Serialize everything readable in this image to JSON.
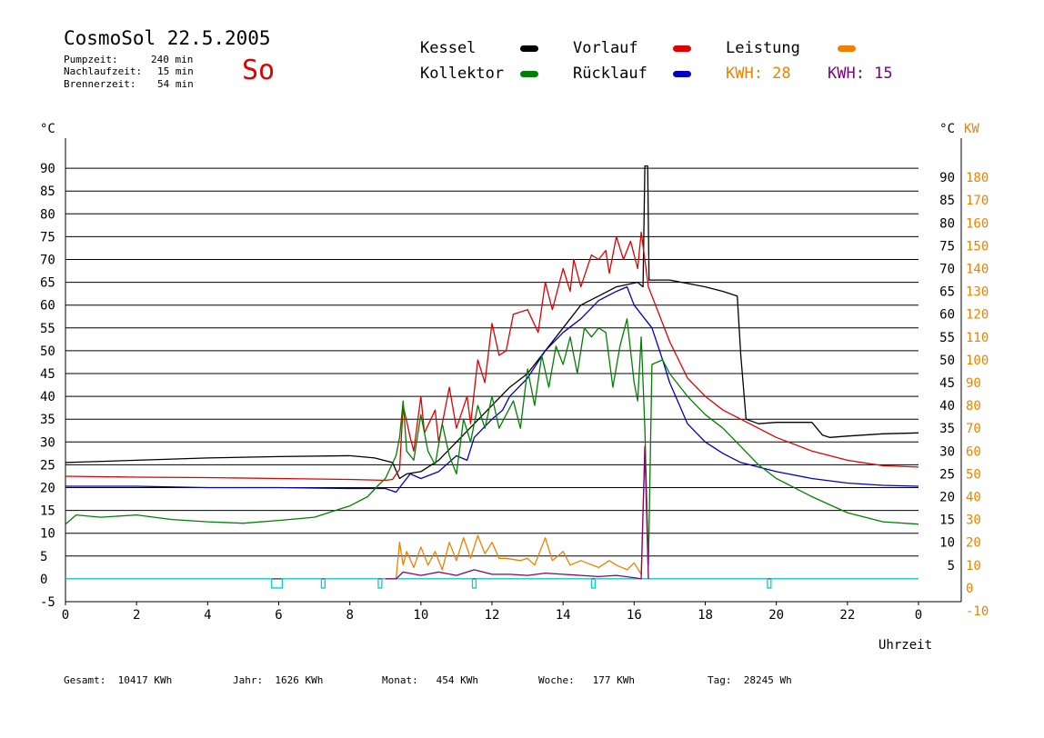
{
  "header": {
    "title": "CosmoSol 22.5.2005",
    "day": "So",
    "pumpzeit_label": "Pumpzeit:",
    "pumpzeit_value": "240 min",
    "nachlaufzeit_label": "Nachlaufzeit:",
    "nachlaufzeit_value": "15 min",
    "brennerzeit_label": "Brennerzeit:",
    "brennerzeit_value": "54 min"
  },
  "legend": {
    "kessel": "Kessel",
    "kollektor": "Kollektor",
    "vorlauf": "Vorlauf",
    "ruecklauf": "Rücklauf",
    "leistung": "Leistung",
    "kwh1": "KWH: 28",
    "kwh2": "KWH: 15"
  },
  "footer": {
    "gesamt": "Gesamt:  10417 KWh",
    "jahr": "Jahr:  1626 KWh",
    "monat": "Monat:   454 KWh",
    "woche": "Woche:   177 KWh",
    "tag": "Tag:  28245 Wh"
  },
  "colors": {
    "kessel": "#000000",
    "kollektor": "#008000",
    "vorlauf": "#e00000",
    "ruecklauf": "#0000c0",
    "leistung": "#f08000",
    "kwh2": "#800080",
    "pump": "#00d0d0",
    "grid": "#000000"
  },
  "chart_data": {
    "type": "line",
    "xlabel": "Uhrzeit",
    "ylabel_left": "°C",
    "ylabel_right": "KW",
    "xlim": [
      0,
      24
    ],
    "ylim_left": [
      -5,
      95
    ],
    "ylim_right": [
      -10,
      190
    ],
    "x_ticks": [
      "0",
      "2",
      "4",
      "6",
      "8",
      "10",
      "12",
      "14",
      "16",
      "18",
      "20",
      "22",
      "0"
    ],
    "y_ticks_left": [
      "-5",
      "0",
      "5",
      "10",
      "15",
      "20",
      "25",
      "30",
      "35",
      "40",
      "45",
      "50",
      "55",
      "60",
      "65",
      "70",
      "75",
      "80",
      "85",
      "90"
    ],
    "y_ticks_right_temp": [
      "5",
      "10",
      "15",
      "20",
      "25",
      "30",
      "35",
      "40",
      "45",
      "50",
      "55",
      "60",
      "65",
      "70",
      "75",
      "80",
      "85",
      "90"
    ],
    "y_ticks_right_kw": [
      "-10",
      "0",
      "10",
      "20",
      "30",
      "40",
      "50",
      "60",
      "70",
      "80",
      "90",
      "100",
      "110",
      "120",
      "130",
      "140",
      "150",
      "160",
      "170",
      "180"
    ],
    "grid": true,
    "series": [
      {
        "name": "Kessel",
        "color": "#000000",
        "points": [
          [
            0,
            25.5
          ],
          [
            2,
            26
          ],
          [
            4,
            26.5
          ],
          [
            6,
            26.8
          ],
          [
            8,
            27
          ],
          [
            8.7,
            26.5
          ],
          [
            9.2,
            25.5
          ],
          [
            9.4,
            22
          ],
          [
            9.6,
            23
          ],
          [
            10,
            23.5
          ],
          [
            10.5,
            26
          ],
          [
            11,
            30
          ],
          [
            11.5,
            34
          ],
          [
            12,
            38
          ],
          [
            12.5,
            42
          ],
          [
            13,
            45
          ],
          [
            13.5,
            50
          ],
          [
            14,
            55
          ],
          [
            14.5,
            60
          ],
          [
            15,
            62
          ],
          [
            15.5,
            64
          ],
          [
            16.1,
            65
          ],
          [
            16.25,
            64
          ],
          [
            16.3,
            90.5
          ],
          [
            16.38,
            90.5
          ],
          [
            16.42,
            65.5
          ],
          [
            17,
            65.5
          ],
          [
            18,
            64
          ],
          [
            18.5,
            63
          ],
          [
            18.9,
            62
          ],
          [
            19,
            49
          ],
          [
            19.15,
            35
          ],
          [
            19.5,
            34
          ],
          [
            20,
            34.3
          ],
          [
            21,
            34.3
          ],
          [
            21.3,
            31.5
          ],
          [
            21.5,
            31
          ],
          [
            22,
            31.3
          ],
          [
            23,
            31.8
          ],
          [
            24,
            32
          ]
        ]
      },
      {
        "name": "Vorlauf",
        "color": "#e00000",
        "points": [
          [
            0,
            22.5
          ],
          [
            2,
            22.3
          ],
          [
            4,
            22.2
          ],
          [
            6,
            22
          ],
          [
            8,
            21.8
          ],
          [
            9,
            21.6
          ],
          [
            9.2,
            21.8
          ],
          [
            9.4,
            24
          ],
          [
            9.5,
            38
          ],
          [
            9.7,
            31
          ],
          [
            9.8,
            28
          ],
          [
            10,
            40
          ],
          [
            10.1,
            32
          ],
          [
            10.4,
            37
          ],
          [
            10.5,
            30
          ],
          [
            10.8,
            42
          ],
          [
            11,
            33
          ],
          [
            11.3,
            40
          ],
          [
            11.4,
            34
          ],
          [
            11.6,
            48
          ],
          [
            11.8,
            43
          ],
          [
            12,
            56
          ],
          [
            12.2,
            49
          ],
          [
            12.4,
            50
          ],
          [
            12.6,
            58
          ],
          [
            13,
            59
          ],
          [
            13.3,
            54
          ],
          [
            13.5,
            65
          ],
          [
            13.7,
            59
          ],
          [
            14,
            68
          ],
          [
            14.2,
            63
          ],
          [
            14.3,
            70
          ],
          [
            14.5,
            64
          ],
          [
            14.8,
            71
          ],
          [
            15,
            70
          ],
          [
            15.2,
            72
          ],
          [
            15.3,
            67
          ],
          [
            15.5,
            75
          ],
          [
            15.7,
            70
          ],
          [
            15.9,
            74
          ],
          [
            16.1,
            68
          ],
          [
            16.2,
            76
          ],
          [
            16.4,
            64
          ],
          [
            16.6,
            60
          ],
          [
            17,
            52
          ],
          [
            17.5,
            44
          ],
          [
            18,
            40
          ],
          [
            18.5,
            37
          ],
          [
            19,
            35
          ],
          [
            20,
            31
          ],
          [
            21,
            28
          ],
          [
            22,
            26
          ],
          [
            23,
            24.8
          ],
          [
            24,
            24.5
          ]
        ]
      },
      {
        "name": "Rücklauf",
        "color": "#0000c0",
        "points": [
          [
            0,
            20.3
          ],
          [
            2,
            20.3
          ],
          [
            4,
            20
          ],
          [
            6,
            20
          ],
          [
            8,
            19.8
          ],
          [
            9,
            19.8
          ],
          [
            9.3,
            19
          ],
          [
            9.5,
            21
          ],
          [
            9.7,
            23
          ],
          [
            10,
            22
          ],
          [
            10.5,
            23.5
          ],
          [
            11,
            27
          ],
          [
            11.3,
            26
          ],
          [
            11.5,
            31
          ],
          [
            12,
            35
          ],
          [
            12.3,
            37
          ],
          [
            12.5,
            40
          ],
          [
            13,
            44
          ],
          [
            13.5,
            50
          ],
          [
            14,
            54
          ],
          [
            14.5,
            57
          ],
          [
            15,
            61
          ],
          [
            15.5,
            63
          ],
          [
            15.8,
            64
          ],
          [
            16,
            60
          ],
          [
            16.2,
            58
          ],
          [
            16.5,
            55
          ],
          [
            16.8,
            48
          ],
          [
            17,
            43
          ],
          [
            17.5,
            34
          ],
          [
            18,
            30
          ],
          [
            18.5,
            27.5
          ],
          [
            19,
            25.5
          ],
          [
            20,
            23.5
          ],
          [
            21,
            22
          ],
          [
            22,
            21
          ],
          [
            23,
            20.5
          ],
          [
            24,
            20.3
          ]
        ]
      },
      {
        "name": "Kollektor",
        "color": "#008000",
        "points": [
          [
            0,
            12
          ],
          [
            0.3,
            14
          ],
          [
            1,
            13.5
          ],
          [
            2,
            14
          ],
          [
            3,
            13
          ],
          [
            4,
            12.5
          ],
          [
            5,
            12.2
          ],
          [
            6,
            12.8
          ],
          [
            7,
            13.5
          ],
          [
            8,
            16
          ],
          [
            8.5,
            18
          ],
          [
            8.8,
            20.5
          ],
          [
            9,
            22
          ],
          [
            9.3,
            27
          ],
          [
            9.4,
            31
          ],
          [
            9.5,
            39
          ],
          [
            9.6,
            28
          ],
          [
            9.8,
            26
          ],
          [
            10,
            36
          ],
          [
            10.2,
            28
          ],
          [
            10.4,
            25
          ],
          [
            10.6,
            34
          ],
          [
            10.8,
            27
          ],
          [
            11,
            23
          ],
          [
            11.2,
            35
          ],
          [
            11.4,
            30
          ],
          [
            11.6,
            38
          ],
          [
            11.8,
            33
          ],
          [
            12,
            40
          ],
          [
            12.2,
            33
          ],
          [
            12.4,
            36
          ],
          [
            12.6,
            39
          ],
          [
            12.8,
            33
          ],
          [
            13,
            46
          ],
          [
            13.2,
            38
          ],
          [
            13.4,
            49
          ],
          [
            13.6,
            42
          ],
          [
            13.8,
            51
          ],
          [
            14,
            47
          ],
          [
            14.2,
            53
          ],
          [
            14.4,
            45
          ],
          [
            14.6,
            55
          ],
          [
            14.8,
            53
          ],
          [
            15,
            55
          ],
          [
            15.2,
            54
          ],
          [
            15.4,
            42
          ],
          [
            15.6,
            51
          ],
          [
            15.8,
            57
          ],
          [
            16,
            43
          ],
          [
            16.1,
            39
          ],
          [
            16.2,
            53
          ],
          [
            16.3,
            33
          ],
          [
            16.4,
            3
          ],
          [
            16.5,
            47
          ],
          [
            16.8,
            48
          ],
          [
            17,
            45
          ],
          [
            17.5,
            40
          ],
          [
            18,
            36
          ],
          [
            18.5,
            33
          ],
          [
            19,
            29
          ],
          [
            19.5,
            25
          ],
          [
            20,
            22
          ],
          [
            21,
            18
          ],
          [
            22,
            14.5
          ],
          [
            23,
            12.5
          ],
          [
            24,
            12
          ]
        ]
      },
      {
        "name": "Leistung",
        "color": "#f08000",
        "axis": "right",
        "points": [
          [
            9,
            0
          ],
          [
            9.3,
            0
          ],
          [
            9.4,
            16
          ],
          [
            9.5,
            6
          ],
          [
            9.6,
            12
          ],
          [
            9.8,
            5
          ],
          [
            10,
            14
          ],
          [
            10.2,
            6
          ],
          [
            10.4,
            12
          ],
          [
            10.6,
            4
          ],
          [
            10.8,
            16
          ],
          [
            11,
            8
          ],
          [
            11.2,
            18
          ],
          [
            11.4,
            9
          ],
          [
            11.6,
            19
          ],
          [
            11.8,
            11
          ],
          [
            12,
            16
          ],
          [
            12.2,
            9
          ],
          [
            12.4,
            9
          ],
          [
            12.8,
            8
          ],
          [
            13,
            9
          ],
          [
            13.2,
            6
          ],
          [
            13.5,
            18
          ],
          [
            13.7,
            8
          ],
          [
            14,
            12
          ],
          [
            14.2,
            6
          ],
          [
            14.5,
            8
          ],
          [
            15,
            5
          ],
          [
            15.3,
            8
          ],
          [
            15.5,
            6
          ],
          [
            15.8,
            4
          ],
          [
            16,
            7
          ],
          [
            16.2,
            2
          ],
          [
            16.3,
            58
          ],
          [
            16.4,
            0
          ]
        ]
      },
      {
        "name": "KWH 2",
        "color": "#800080",
        "axis": "right",
        "points": [
          [
            9,
            0
          ],
          [
            9.3,
            0
          ],
          [
            9.5,
            3
          ],
          [
            10,
            1.5
          ],
          [
            10.5,
            3
          ],
          [
            11,
            1.5
          ],
          [
            11.5,
            4
          ],
          [
            12,
            2
          ],
          [
            12.5,
            2
          ],
          [
            13,
            1.5
          ],
          [
            13.5,
            2.5
          ],
          [
            14,
            2
          ],
          [
            14.5,
            1.5
          ],
          [
            15,
            1
          ],
          [
            15.5,
            1.5
          ],
          [
            16,
            0.5
          ],
          [
            16.2,
            0
          ],
          [
            16.3,
            58
          ],
          [
            16.4,
            0
          ]
        ]
      }
    ],
    "pump_series": {
      "name": "Pumpe",
      "color": "#00d0d0",
      "pulses": [
        [
          5.8,
          6.1
        ],
        [
          7.2,
          7.3
        ],
        [
          8.8,
          8.9
        ],
        [
          11.45,
          11.55
        ],
        [
          14.8,
          14.9
        ],
        [
          19.75,
          19.85
        ]
      ]
    }
  }
}
